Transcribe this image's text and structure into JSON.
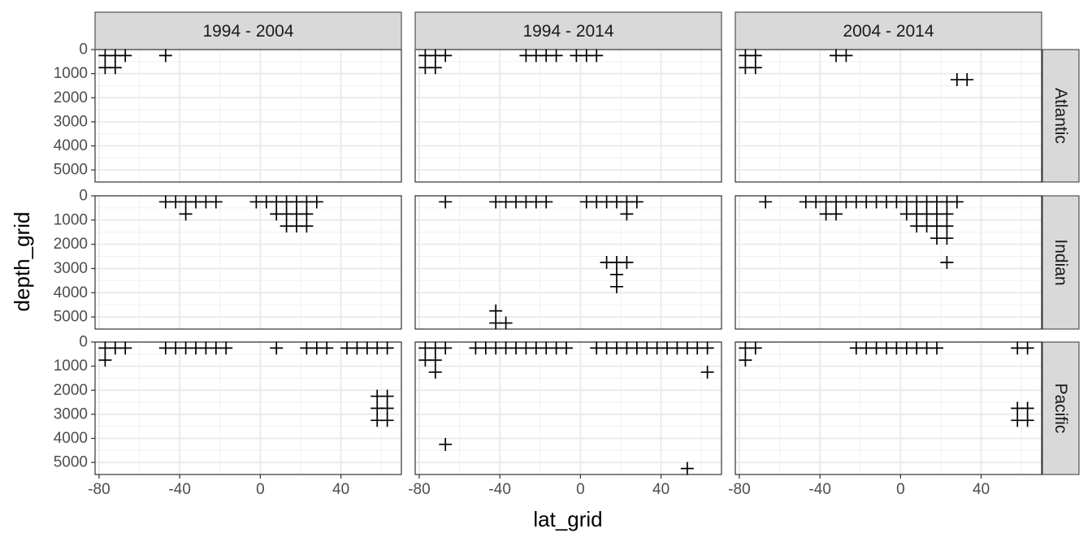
{
  "chart_data": {
    "type": "scatter",
    "marker": "plus",
    "xlabel": "lat_grid",
    "ylabel": "depth_grid",
    "xlim": [
      -82,
      70
    ],
    "ylim": [
      5500,
      0
    ],
    "y_reversed": true,
    "xticks": [
      -80,
      -40,
      0,
      40
    ],
    "xtick_labels": [
      "-80",
      "-40",
      "0",
      "40"
    ],
    "yticks": [
      0,
      1000,
      2000,
      3000,
      4000,
      5000
    ],
    "ytick_labels": [
      "0",
      "1000",
      "2000",
      "3000",
      "4000",
      "5000"
    ],
    "grid": true,
    "column_facets": [
      "1994 - 2004",
      "1994 - 2014",
      "2004 - 2014"
    ],
    "row_facets": [
      "Atlantic",
      "Indian",
      "Pacific"
    ],
    "panels": [
      {
        "column": "1994 - 2004",
        "row": "Atlantic",
        "points": [
          [
            -77,
            250
          ],
          [
            -72,
            250
          ],
          [
            -67,
            250
          ],
          [
            -47,
            250
          ],
          [
            -77,
            750
          ],
          [
            -72,
            750
          ]
        ]
      },
      {
        "column": "1994 - 2014",
        "row": "Atlantic",
        "points": [
          [
            -77,
            250
          ],
          [
            -72,
            250
          ],
          [
            -67,
            250
          ],
          [
            -27,
            250
          ],
          [
            -22,
            250
          ],
          [
            -17,
            250
          ],
          [
            -12,
            250
          ],
          [
            -2,
            250
          ],
          [
            3,
            250
          ],
          [
            8,
            250
          ],
          [
            -77,
            750
          ],
          [
            -72,
            750
          ]
        ]
      },
      {
        "column": "2004 - 2014",
        "row": "Atlantic",
        "points": [
          [
            -77,
            250
          ],
          [
            -72,
            250
          ],
          [
            -32,
            250
          ],
          [
            -27,
            250
          ],
          [
            -77,
            750
          ],
          [
            -72,
            750
          ],
          [
            28,
            1250
          ],
          [
            33,
            1250
          ]
        ]
      },
      {
        "column": "1994 - 2004",
        "row": "Indian",
        "points": [
          [
            -47,
            250
          ],
          [
            -42,
            250
          ],
          [
            -37,
            250
          ],
          [
            -32,
            250
          ],
          [
            -27,
            250
          ],
          [
            -22,
            250
          ],
          [
            -2,
            250
          ],
          [
            3,
            250
          ],
          [
            8,
            250
          ],
          [
            13,
            250
          ],
          [
            18,
            250
          ],
          [
            23,
            250
          ],
          [
            28,
            250
          ],
          [
            -37,
            750
          ],
          [
            8,
            750
          ],
          [
            13,
            750
          ],
          [
            18,
            750
          ],
          [
            23,
            750
          ],
          [
            13,
            1250
          ],
          [
            18,
            1250
          ],
          [
            23,
            1250
          ]
        ]
      },
      {
        "column": "1994 - 2014",
        "row": "Indian",
        "points": [
          [
            -67,
            250
          ],
          [
            -42,
            250
          ],
          [
            -37,
            250
          ],
          [
            -32,
            250
          ],
          [
            -27,
            250
          ],
          [
            -22,
            250
          ],
          [
            -17,
            250
          ],
          [
            3,
            250
          ],
          [
            8,
            250
          ],
          [
            13,
            250
          ],
          [
            18,
            250
          ],
          [
            23,
            250
          ],
          [
            28,
            250
          ],
          [
            23,
            750
          ],
          [
            13,
            2750
          ],
          [
            18,
            2750
          ],
          [
            23,
            2750
          ],
          [
            18,
            3250
          ],
          [
            18,
            3750
          ],
          [
            -42,
            4750
          ],
          [
            -42,
            5250
          ],
          [
            -37,
            5250
          ]
        ]
      },
      {
        "column": "2004 - 2014",
        "row": "Indian",
        "points": [
          [
            -67,
            250
          ],
          [
            -47,
            250
          ],
          [
            -42,
            250
          ],
          [
            -37,
            250
          ],
          [
            -32,
            250
          ],
          [
            -27,
            250
          ],
          [
            -22,
            250
          ],
          [
            -17,
            250
          ],
          [
            -12,
            250
          ],
          [
            -7,
            250
          ],
          [
            -2,
            250
          ],
          [
            3,
            250
          ],
          [
            8,
            250
          ],
          [
            13,
            250
          ],
          [
            18,
            250
          ],
          [
            23,
            250
          ],
          [
            28,
            250
          ],
          [
            -37,
            750
          ],
          [
            -32,
            750
          ],
          [
            3,
            750
          ],
          [
            8,
            750
          ],
          [
            13,
            750
          ],
          [
            18,
            750
          ],
          [
            23,
            750
          ],
          [
            8,
            1250
          ],
          [
            13,
            1250
          ],
          [
            18,
            1250
          ],
          [
            23,
            1250
          ],
          [
            18,
            1750
          ],
          [
            23,
            1750
          ],
          [
            23,
            2750
          ]
        ]
      },
      {
        "column": "1994 - 2004",
        "row": "Pacific",
        "points": [
          [
            -77,
            250
          ],
          [
            -72,
            250
          ],
          [
            -67,
            250
          ],
          [
            -47,
            250
          ],
          [
            -42,
            250
          ],
          [
            -37,
            250
          ],
          [
            -32,
            250
          ],
          [
            -27,
            250
          ],
          [
            -22,
            250
          ],
          [
            -17,
            250
          ],
          [
            8,
            250
          ],
          [
            23,
            250
          ],
          [
            28,
            250
          ],
          [
            33,
            250
          ],
          [
            43,
            250
          ],
          [
            48,
            250
          ],
          [
            53,
            250
          ],
          [
            58,
            250
          ],
          [
            63,
            250
          ],
          [
            -77,
            750
          ],
          [
            58,
            2250
          ],
          [
            63,
            2250
          ],
          [
            58,
            2750
          ],
          [
            63,
            2750
          ],
          [
            58,
            3250
          ],
          [
            63,
            3250
          ]
        ]
      },
      {
        "column": "1994 - 2014",
        "row": "Pacific",
        "points": [
          [
            -77,
            250
          ],
          [
            -72,
            250
          ],
          [
            -67,
            250
          ],
          [
            -52,
            250
          ],
          [
            -47,
            250
          ],
          [
            -42,
            250
          ],
          [
            -37,
            250
          ],
          [
            -32,
            250
          ],
          [
            -27,
            250
          ],
          [
            -22,
            250
          ],
          [
            -17,
            250
          ],
          [
            -12,
            250
          ],
          [
            -7,
            250
          ],
          [
            8,
            250
          ],
          [
            13,
            250
          ],
          [
            18,
            250
          ],
          [
            23,
            250
          ],
          [
            28,
            250
          ],
          [
            33,
            250
          ],
          [
            38,
            250
          ],
          [
            43,
            250
          ],
          [
            48,
            250
          ],
          [
            53,
            250
          ],
          [
            58,
            250
          ],
          [
            63,
            250
          ],
          [
            -77,
            750
          ],
          [
            -72,
            750
          ],
          [
            -72,
            1250
          ],
          [
            63,
            1250
          ],
          [
            -67,
            4250
          ],
          [
            53,
            5250
          ]
        ]
      },
      {
        "column": "2004 - 2014",
        "row": "Pacific",
        "points": [
          [
            -77,
            250
          ],
          [
            -72,
            250
          ],
          [
            -22,
            250
          ],
          [
            -17,
            250
          ],
          [
            -12,
            250
          ],
          [
            -7,
            250
          ],
          [
            -2,
            250
          ],
          [
            3,
            250
          ],
          [
            8,
            250
          ],
          [
            13,
            250
          ],
          [
            18,
            250
          ],
          [
            58,
            250
          ],
          [
            63,
            250
          ],
          [
            -77,
            750
          ],
          [
            58,
            2750
          ],
          [
            63,
            2750
          ],
          [
            58,
            3250
          ],
          [
            63,
            3250
          ]
        ]
      }
    ]
  }
}
